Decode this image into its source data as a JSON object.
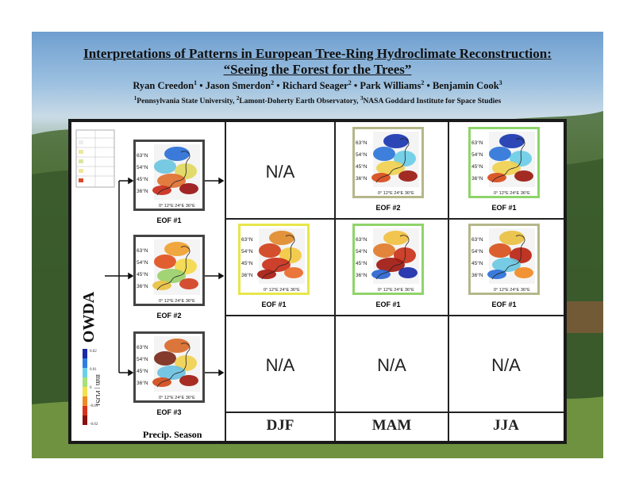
{
  "title_line1": "Interpretations of Patterns in European Tree-Ring Hydroclimate Reconstruction:",
  "title_line2": "“Seeing the Forest for the Trees”",
  "authors": [
    {
      "name": "Ryan Creedon",
      "affil": "1"
    },
    {
      "name": "Jason Smerdon",
      "affil": "2"
    },
    {
      "name": "Richard Seager",
      "affil": "2"
    },
    {
      "name": "Park Williams",
      "affil": "2"
    },
    {
      "name": "Benjamin Cook",
      "affil": "3"
    }
  ],
  "affiliations": [
    {
      "num": "1",
      "name": "Pennsylvania State University,"
    },
    {
      "num": "2",
      "name": "Lamont-Doherty Earth Observatory,"
    },
    {
      "num": "3",
      "name": "NASA Goddard Institute for Space Studies"
    }
  ],
  "grid": {
    "row_label": "OWDA",
    "row_header": "Precip. Season",
    "seasons": [
      "DJF",
      "MAM",
      "JJA"
    ],
    "na_label": "N/A",
    "colorbar_units": "mm | PDSI",
    "colorbar_ticks": [
      "0.02",
      "0.01",
      "0",
      "-0.01",
      "-0.02"
    ],
    "map_lat_labels": [
      "63°N",
      "54°N",
      "45°N",
      "36°N"
    ],
    "map_lon_label": "0° 12°E 24°E 36°E",
    "maps": [
      {
        "id": "owda-eof1",
        "caption": "EOF #1",
        "frame": "#444444",
        "pattern": "dry-south"
      },
      {
        "id": "owda-eof2",
        "caption": "EOF #2",
        "frame": "#444444",
        "pattern": "dry-north"
      },
      {
        "id": "owda-eof3",
        "caption": "EOF #3",
        "frame": "#444444",
        "pattern": "mixed"
      },
      {
        "id": "mam-eof2",
        "caption": "EOF #2",
        "frame": "#b5b78a",
        "pattern": "wet-north"
      },
      {
        "id": "jja-eof1-top",
        "caption": "EOF #1",
        "frame": "#8fd46a",
        "pattern": "wet-north"
      },
      {
        "id": "djf-eof1",
        "caption": "EOF #1",
        "frame": "#e8e64a",
        "pattern": "dry-all"
      },
      {
        "id": "mam-eof1",
        "caption": "EOF #1",
        "frame": "#8fd46a",
        "pattern": "dry-south-wet"
      },
      {
        "id": "jja-eof1",
        "caption": "EOF #1",
        "frame": "#b5b78a",
        "pattern": "mixed-wet"
      }
    ]
  }
}
